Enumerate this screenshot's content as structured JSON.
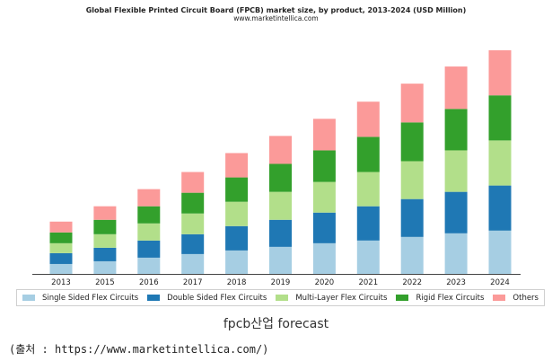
{
  "chart_data": {
    "type": "bar",
    "stacked": true,
    "title": "Global Flexible Printed Circuit Board (FPCB) market size, by product, 2013-2024 (USD Million)",
    "subtitle": "www.marketintellica.com",
    "categories": [
      "2013",
      "2015",
      "2016",
      "2017",
      "2018",
      "2019",
      "2020",
      "2021",
      "2022",
      "2023",
      "2024"
    ],
    "series": [
      {
        "name": "Single Sided Flex Circuits",
        "color": "#a6cee3",
        "values": [
          11,
          14,
          18,
          22,
          26,
          30,
          34,
          37,
          41,
          45,
          48
        ]
      },
      {
        "name": "Double Sided Flex Circuits",
        "color": "#1f78b4",
        "values": [
          12,
          15,
          19,
          22,
          27,
          30,
          34,
          38,
          42,
          46,
          50
        ]
      },
      {
        "name": "Multi-Layer Flex Circuits",
        "color": "#b2df8a",
        "values": [
          11,
          15,
          19,
          23,
          27,
          31,
          34,
          38,
          42,
          46,
          50
        ]
      },
      {
        "name": "Rigid Flex Circuits",
        "color": "#33a02c",
        "values": [
          12,
          16,
          19,
          23,
          27,
          31,
          35,
          39,
          43,
          46,
          50
        ]
      },
      {
        "name": "Others",
        "color": "#fb9a99",
        "values": [
          12,
          15,
          19,
          23,
          27,
          31,
          35,
          39,
          43,
          47,
          50
        ]
      }
    ],
    "grid": false,
    "legend_position": "bottom"
  },
  "caption": "fpcb산업 forecast",
  "source": "(출처 : https://www.marketintellica.com/)"
}
